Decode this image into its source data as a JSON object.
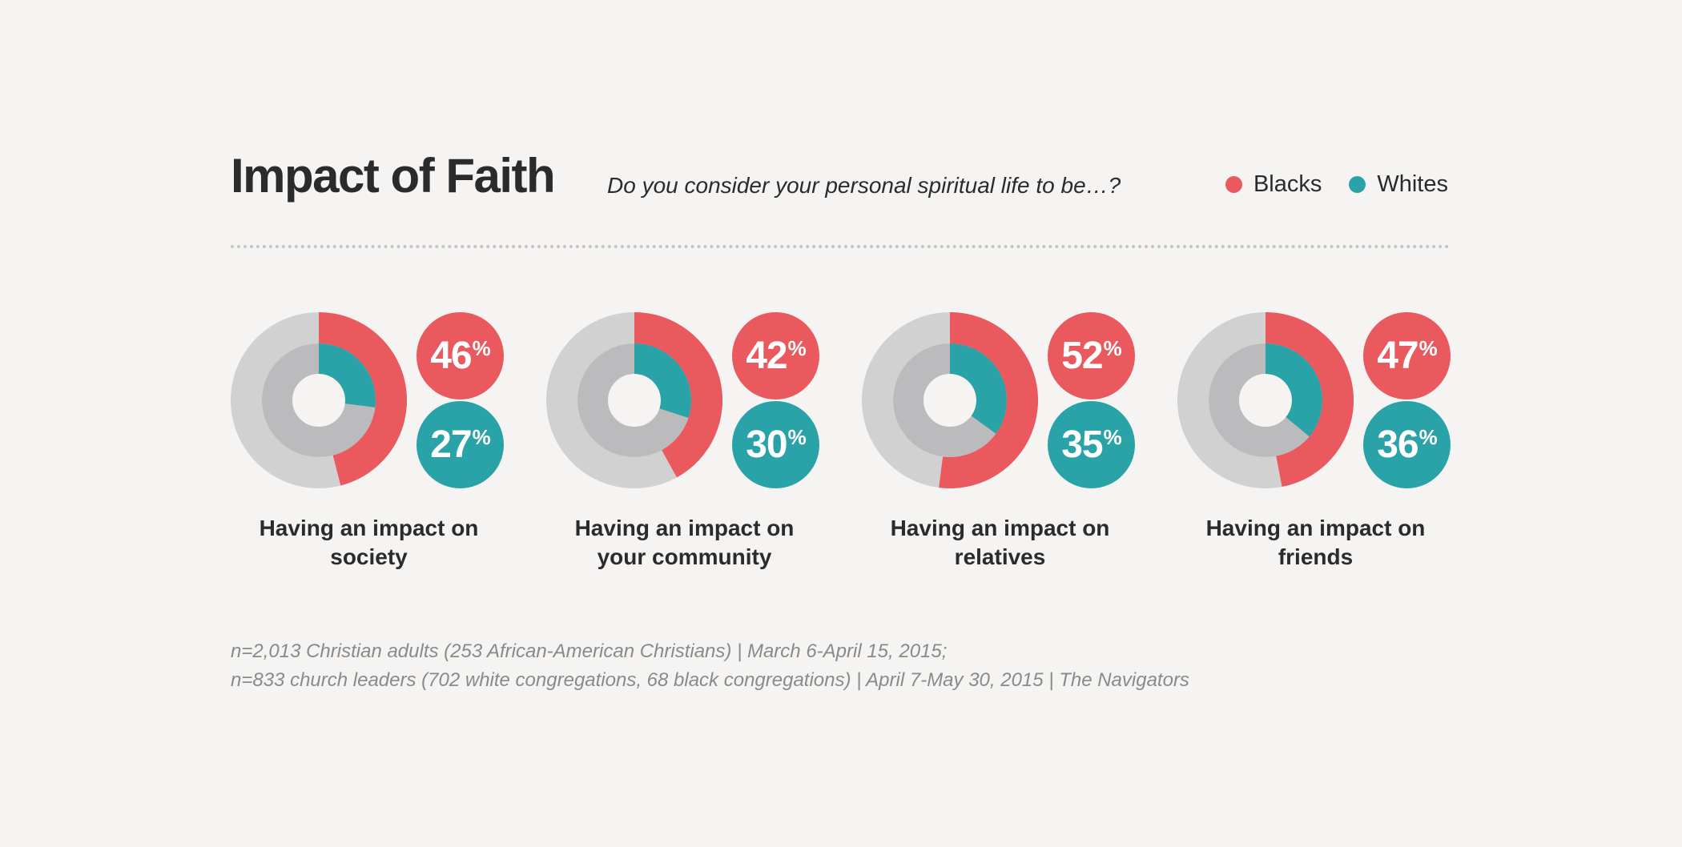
{
  "title": "Impact of Faith",
  "subtitle": "Do you consider your personal spiritual life to be…?",
  "legend": [
    {
      "label": "Blacks",
      "color": "#e9595e"
    },
    {
      "label": "Whites",
      "color": "#2aa3a8"
    }
  ],
  "colors": {
    "blacks": "#e9595e",
    "whites": "#2aa3a8",
    "outer_track": "#d1d1d2",
    "inner_track": "#bbbbbd"
  },
  "chart_data": {
    "type": "pie",
    "title": "Impact of Faith",
    "subtitle": "Do you consider your personal spiritual life to be…?",
    "unit": "%",
    "categories": [
      [
        "Having an impact on",
        "society"
      ],
      [
        "Having an impact on",
        "your community"
      ],
      [
        "Having an impact on",
        "relatives"
      ],
      [
        "Having an impact on",
        "friends"
      ]
    ],
    "series": [
      {
        "name": "Blacks",
        "values": [
          46,
          42,
          52,
          47
        ]
      },
      {
        "name": "Whites",
        "values": [
          27,
          30,
          35,
          36
        ]
      }
    ]
  },
  "footnote": [
    "n=2,013 Christian adults (253 African-American Christians) | March 6-April 15, 2015;",
    "n=833 church leaders (702 white congregations, 68 black congregations) | April 7-May 30, 2015 | The Navigators"
  ]
}
